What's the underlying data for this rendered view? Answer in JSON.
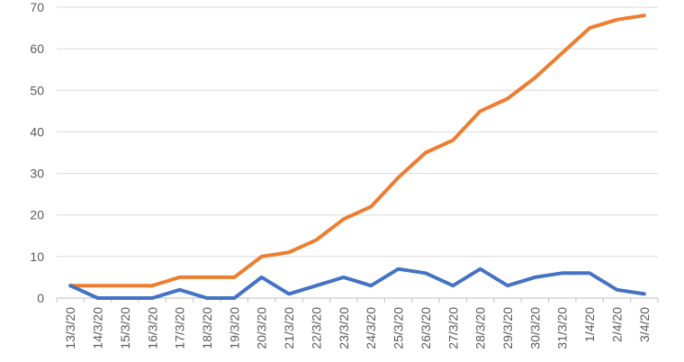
{
  "chart_data": {
    "type": "line",
    "categories": [
      "13/3/20",
      "14/3/20",
      "15/3/20",
      "16/3/20",
      "17/3/20",
      "18/3/20",
      "19/3/20",
      "20/3/20",
      "21/3/20",
      "22/3/20",
      "23/3/20",
      "24/3/20",
      "25/3/20",
      "26/3/20",
      "27/3/20",
      "28/3/20",
      "29/3/20",
      "30/3/20",
      "31/3/20",
      "1/4/20",
      "2/4/20",
      "3/4/20"
    ],
    "series": [
      {
        "color": "#ed7d31",
        "values": [
          3,
          3,
          3,
          3,
          5,
          5,
          5,
          10,
          11,
          14,
          19,
          22,
          29,
          35,
          38,
          45,
          48,
          53,
          59,
          65,
          67,
          68
        ]
      },
      {
        "color": "#4472c4",
        "values": [
          3,
          0,
          0,
          0,
          2,
          0,
          0,
          5,
          1,
          3,
          5,
          3,
          7,
          6,
          3,
          7,
          3,
          5,
          6,
          6,
          2,
          1
        ]
      }
    ],
    "ylim": [
      0,
      70
    ],
    "yticks": [
      0,
      10,
      20,
      30,
      40,
      50,
      60,
      70
    ],
    "grid": true,
    "legend": "none"
  }
}
